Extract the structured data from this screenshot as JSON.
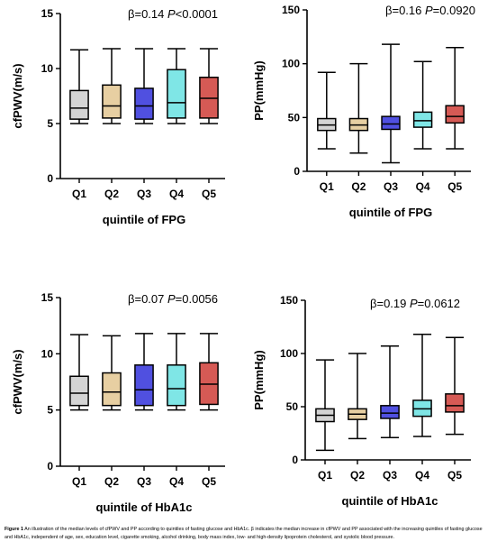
{
  "caption": {
    "label": "Figure 1",
    "text": "An illustration of the median levels of cfPWV and PP according to quintiles of fasting glucose and HbA1c. β indicates the median increase in cfPWV and PP associated with the increasing quintiles of fasting glucose and HbA1c, independent of age, sex, education level, cigarette smoking, alcohol drinking, body mass index, low- and high-density lipoprotein cholesterol, and systolic blood pressure."
  },
  "colors": {
    "Q1": "#d4d4d4",
    "Q2": "#e7cfa2",
    "Q3": "#5050e0",
    "Q4": "#7fe6e6",
    "Q5": "#d65a55"
  },
  "chart_data": [
    {
      "type": "boxplot",
      "ylabel": "cfPWV(m/s)",
      "xlabel": "quintile of FPG",
      "stat": {
        "beta": "β=0.14",
        "p": "P<0.0001"
      },
      "ylim": [
        0,
        15
      ],
      "yticks": [
        "0",
        "5",
        "10",
        "15"
      ],
      "categories": [
        "Q1",
        "Q2",
        "Q3",
        "Q4",
        "Q5"
      ],
      "boxes": [
        {
          "min": 5.0,
          "q1": 5.4,
          "median": 6.4,
          "q3": 8.0,
          "max": 11.7
        },
        {
          "min": 5.0,
          "q1": 5.5,
          "median": 6.6,
          "q3": 8.5,
          "max": 11.8
        },
        {
          "min": 5.0,
          "q1": 5.4,
          "median": 6.6,
          "q3": 8.2,
          "max": 11.8
        },
        {
          "min": 5.0,
          "q1": 5.5,
          "median": 6.9,
          "q3": 9.9,
          "max": 11.8
        },
        {
          "min": 5.0,
          "q1": 5.5,
          "median": 7.3,
          "q3": 9.2,
          "max": 11.8
        }
      ]
    },
    {
      "type": "boxplot",
      "ylabel": "PP(mmHg)",
      "xlabel": "quintile of FPG",
      "stat": {
        "beta": "β=0.16",
        "p": "P=0.0920"
      },
      "ylim": [
        0,
        150
      ],
      "yticks": [
        "0",
        "50",
        "100",
        "150"
      ],
      "categories": [
        "Q1",
        "Q2",
        "Q3",
        "Q4",
        "Q5"
      ],
      "boxes": [
        {
          "min": 21,
          "q1": 38,
          "median": 43,
          "q3": 49,
          "max": 92
        },
        {
          "min": 17,
          "q1": 38,
          "median": 43,
          "q3": 49,
          "max": 100
        },
        {
          "min": 8,
          "q1": 39,
          "median": 44,
          "q3": 51,
          "max": 118
        },
        {
          "min": 21,
          "q1": 41,
          "median": 47,
          "q3": 55,
          "max": 102
        },
        {
          "min": 21,
          "q1": 45,
          "median": 51,
          "q3": 61,
          "max": 115
        }
      ]
    },
    {
      "type": "boxplot",
      "ylabel": "cfPWV(m/s)",
      "xlabel": "quintile of HbA1c",
      "stat": {
        "beta": "β=0.07",
        "p": "P=0.0056"
      },
      "ylim": [
        0,
        15
      ],
      "yticks": [
        "0",
        "5",
        "10",
        "15"
      ],
      "categories": [
        "Q1",
        "Q2",
        "Q3",
        "Q4",
        "Q5"
      ],
      "boxes": [
        {
          "min": 5.0,
          "q1": 5.4,
          "median": 6.5,
          "q3": 8.0,
          "max": 11.7
        },
        {
          "min": 5.0,
          "q1": 5.4,
          "median": 6.6,
          "q3": 8.3,
          "max": 11.6
        },
        {
          "min": 5.0,
          "q1": 5.4,
          "median": 6.8,
          "q3": 9.0,
          "max": 11.8
        },
        {
          "min": 5.0,
          "q1": 5.4,
          "median": 6.9,
          "q3": 9.0,
          "max": 11.8
        },
        {
          "min": 5.0,
          "q1": 5.5,
          "median": 7.3,
          "q3": 9.2,
          "max": 11.8
        }
      ]
    },
    {
      "type": "boxplot",
      "ylabel": "PP(mmHg)",
      "xlabel": "quintile of HbA1c",
      "stat": {
        "beta": "β=0.19",
        "p": "P=0.0612"
      },
      "ylim": [
        0,
        150
      ],
      "yticks": [
        "0",
        "50",
        "100",
        "150"
      ],
      "categories": [
        "Q1",
        "Q2",
        "Q3",
        "Q4",
        "Q5"
      ],
      "boxes": [
        {
          "min": 9,
          "q1": 36,
          "median": 42,
          "q3": 48,
          "max": 94
        },
        {
          "min": 20,
          "q1": 38,
          "median": 43,
          "q3": 48,
          "max": 100
        },
        {
          "min": 21,
          "q1": 39,
          "median": 44,
          "q3": 51,
          "max": 107
        },
        {
          "min": 22,
          "q1": 41,
          "median": 48,
          "q3": 56,
          "max": 118
        },
        {
          "min": 24,
          "q1": 45,
          "median": 51,
          "q3": 62,
          "max": 115
        }
      ]
    }
  ]
}
